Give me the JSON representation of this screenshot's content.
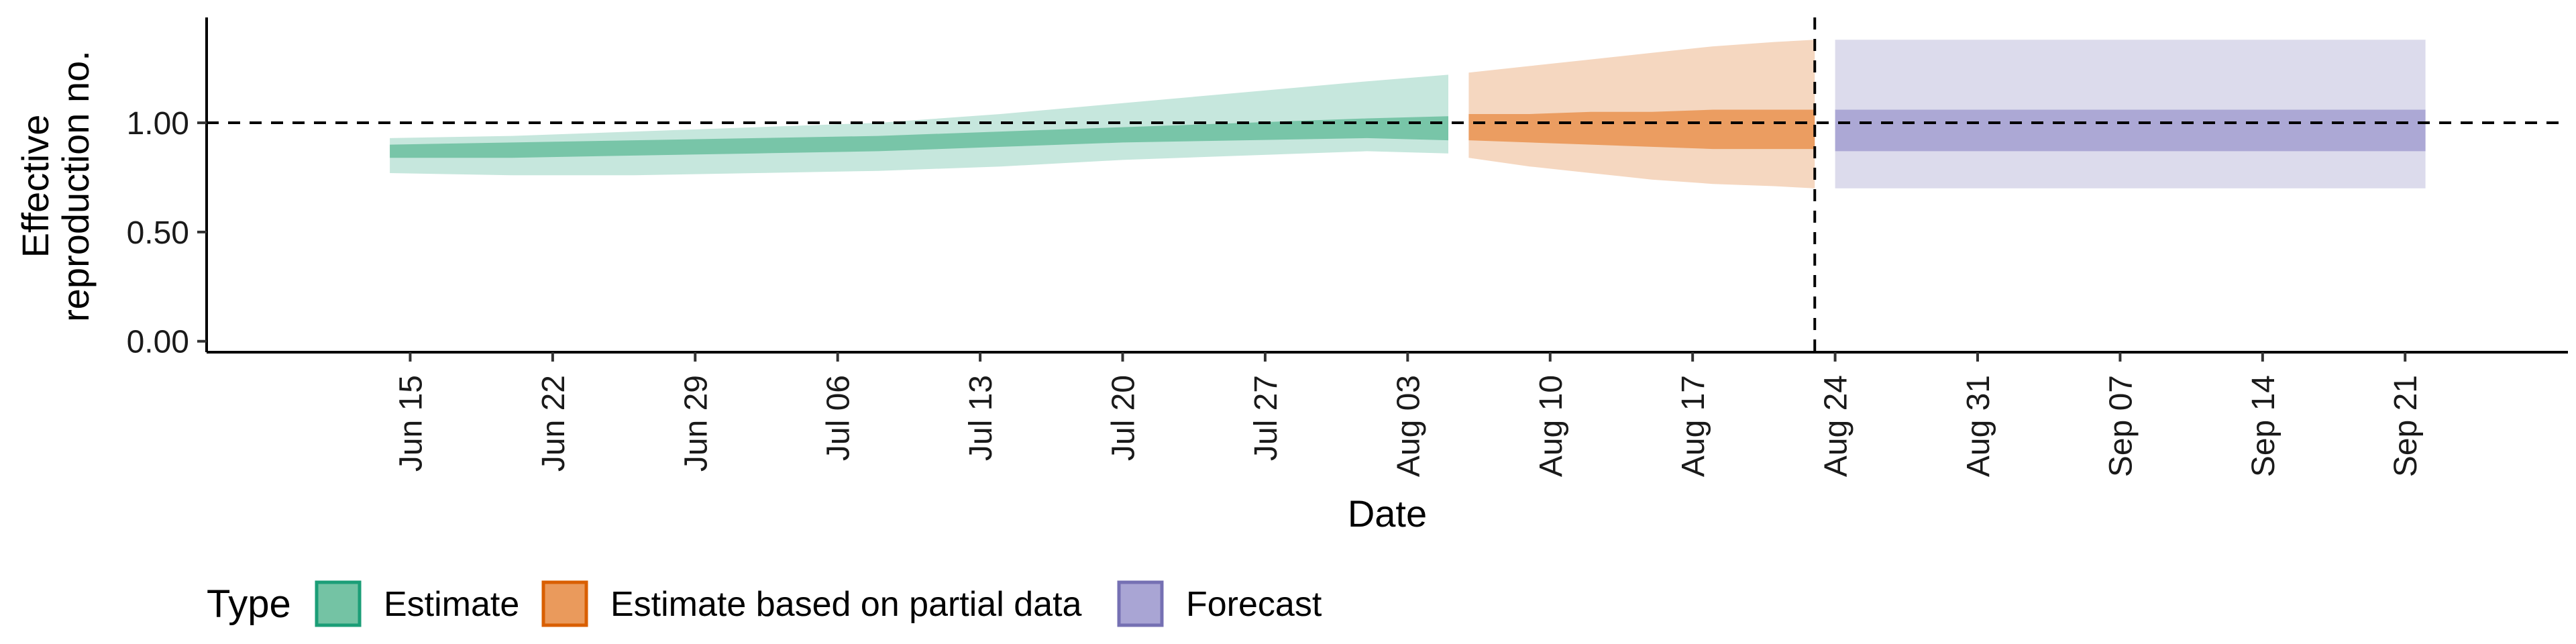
{
  "chart_data": {
    "type": "area",
    "ylabel": "Effective\nreproduction no.",
    "xlabel": "Date",
    "ylim": [
      -0.05,
      1.47
    ],
    "xlim": [
      "2020-06-05",
      "2020-09-29"
    ],
    "y_ticks": [
      "0.00",
      "0.50",
      "1.00"
    ],
    "y_tick_values": [
      0,
      0.5,
      1
    ],
    "x_ticks": [
      "Jun 15",
      "Jun 22",
      "Jun 29",
      "Jul 06",
      "Jul 13",
      "Jul 20",
      "Jul 27",
      "Aug 03",
      "Aug 10",
      "Aug 17",
      "Aug 24",
      "Aug 31",
      "Sep 07",
      "Sep 14",
      "Sep 21"
    ],
    "x_tick_dates": [
      "2020-06-15",
      "2020-06-22",
      "2020-06-29",
      "2020-07-06",
      "2020-07-13",
      "2020-07-20",
      "2020-07-27",
      "2020-08-03",
      "2020-08-10",
      "2020-08-17",
      "2020-08-24",
      "2020-08-31",
      "2020-09-07",
      "2020-09-14",
      "2020-09-21"
    ],
    "reference_lines": {
      "horizontal_y": 1.0,
      "vertical_x": "2020-08-23"
    },
    "grid": false,
    "legend": {
      "title": "Type",
      "placement": "bottom-left",
      "items": [
        "Estimate",
        "Estimate based on partial data",
        "Forecast"
      ]
    },
    "colors": {
      "estimate": "#1b9e77",
      "partial": "#d95f02",
      "forecast": "#7570b3",
      "estimate_fill": "#74c3a4",
      "partial_fill": "#ea9a5c",
      "forecast_fill": "#a9a5d4"
    },
    "series": [
      {
        "name": "Estimate",
        "color_key": "estimate",
        "x": [
          "2020-06-14",
          "2020-06-20",
          "2020-06-26",
          "2020-07-02",
          "2020-07-08",
          "2020-07-14",
          "2020-07-20",
          "2020-07-26",
          "2020-08-01",
          "2020-08-05"
        ],
        "lower_90": [
          0.77,
          0.76,
          0.76,
          0.77,
          0.78,
          0.8,
          0.83,
          0.85,
          0.87,
          0.86
        ],
        "lower_50": [
          0.84,
          0.84,
          0.85,
          0.86,
          0.87,
          0.89,
          0.91,
          0.92,
          0.93,
          0.92
        ],
        "upper_50": [
          0.9,
          0.91,
          0.92,
          0.93,
          0.94,
          0.96,
          0.98,
          1.0,
          1.02,
          1.03
        ],
        "upper_90": [
          0.93,
          0.94,
          0.96,
          0.98,
          1.0,
          1.04,
          1.09,
          1.14,
          1.19,
          1.22
        ]
      },
      {
        "name": "Estimate based on partial data",
        "color_key": "partial",
        "x": [
          "2020-08-06",
          "2020-08-09",
          "2020-08-12",
          "2020-08-15",
          "2020-08-18",
          "2020-08-21",
          "2020-08-23"
        ],
        "lower_90": [
          0.84,
          0.8,
          0.77,
          0.74,
          0.72,
          0.71,
          0.7
        ],
        "lower_50": [
          0.92,
          0.91,
          0.9,
          0.89,
          0.88,
          0.88,
          0.88
        ],
        "upper_50": [
          1.04,
          1.04,
          1.05,
          1.05,
          1.06,
          1.06,
          1.06
        ],
        "upper_90": [
          1.23,
          1.26,
          1.29,
          1.32,
          1.35,
          1.37,
          1.38
        ]
      },
      {
        "name": "Forecast",
        "color_key": "forecast",
        "x": [
          "2020-08-24",
          "2020-09-22"
        ],
        "lower_90": [
          0.7,
          0.7
        ],
        "lower_50": [
          0.87,
          0.87
        ],
        "upper_50": [
          1.06,
          1.06
        ],
        "upper_90": [
          1.38,
          1.38
        ]
      }
    ]
  }
}
